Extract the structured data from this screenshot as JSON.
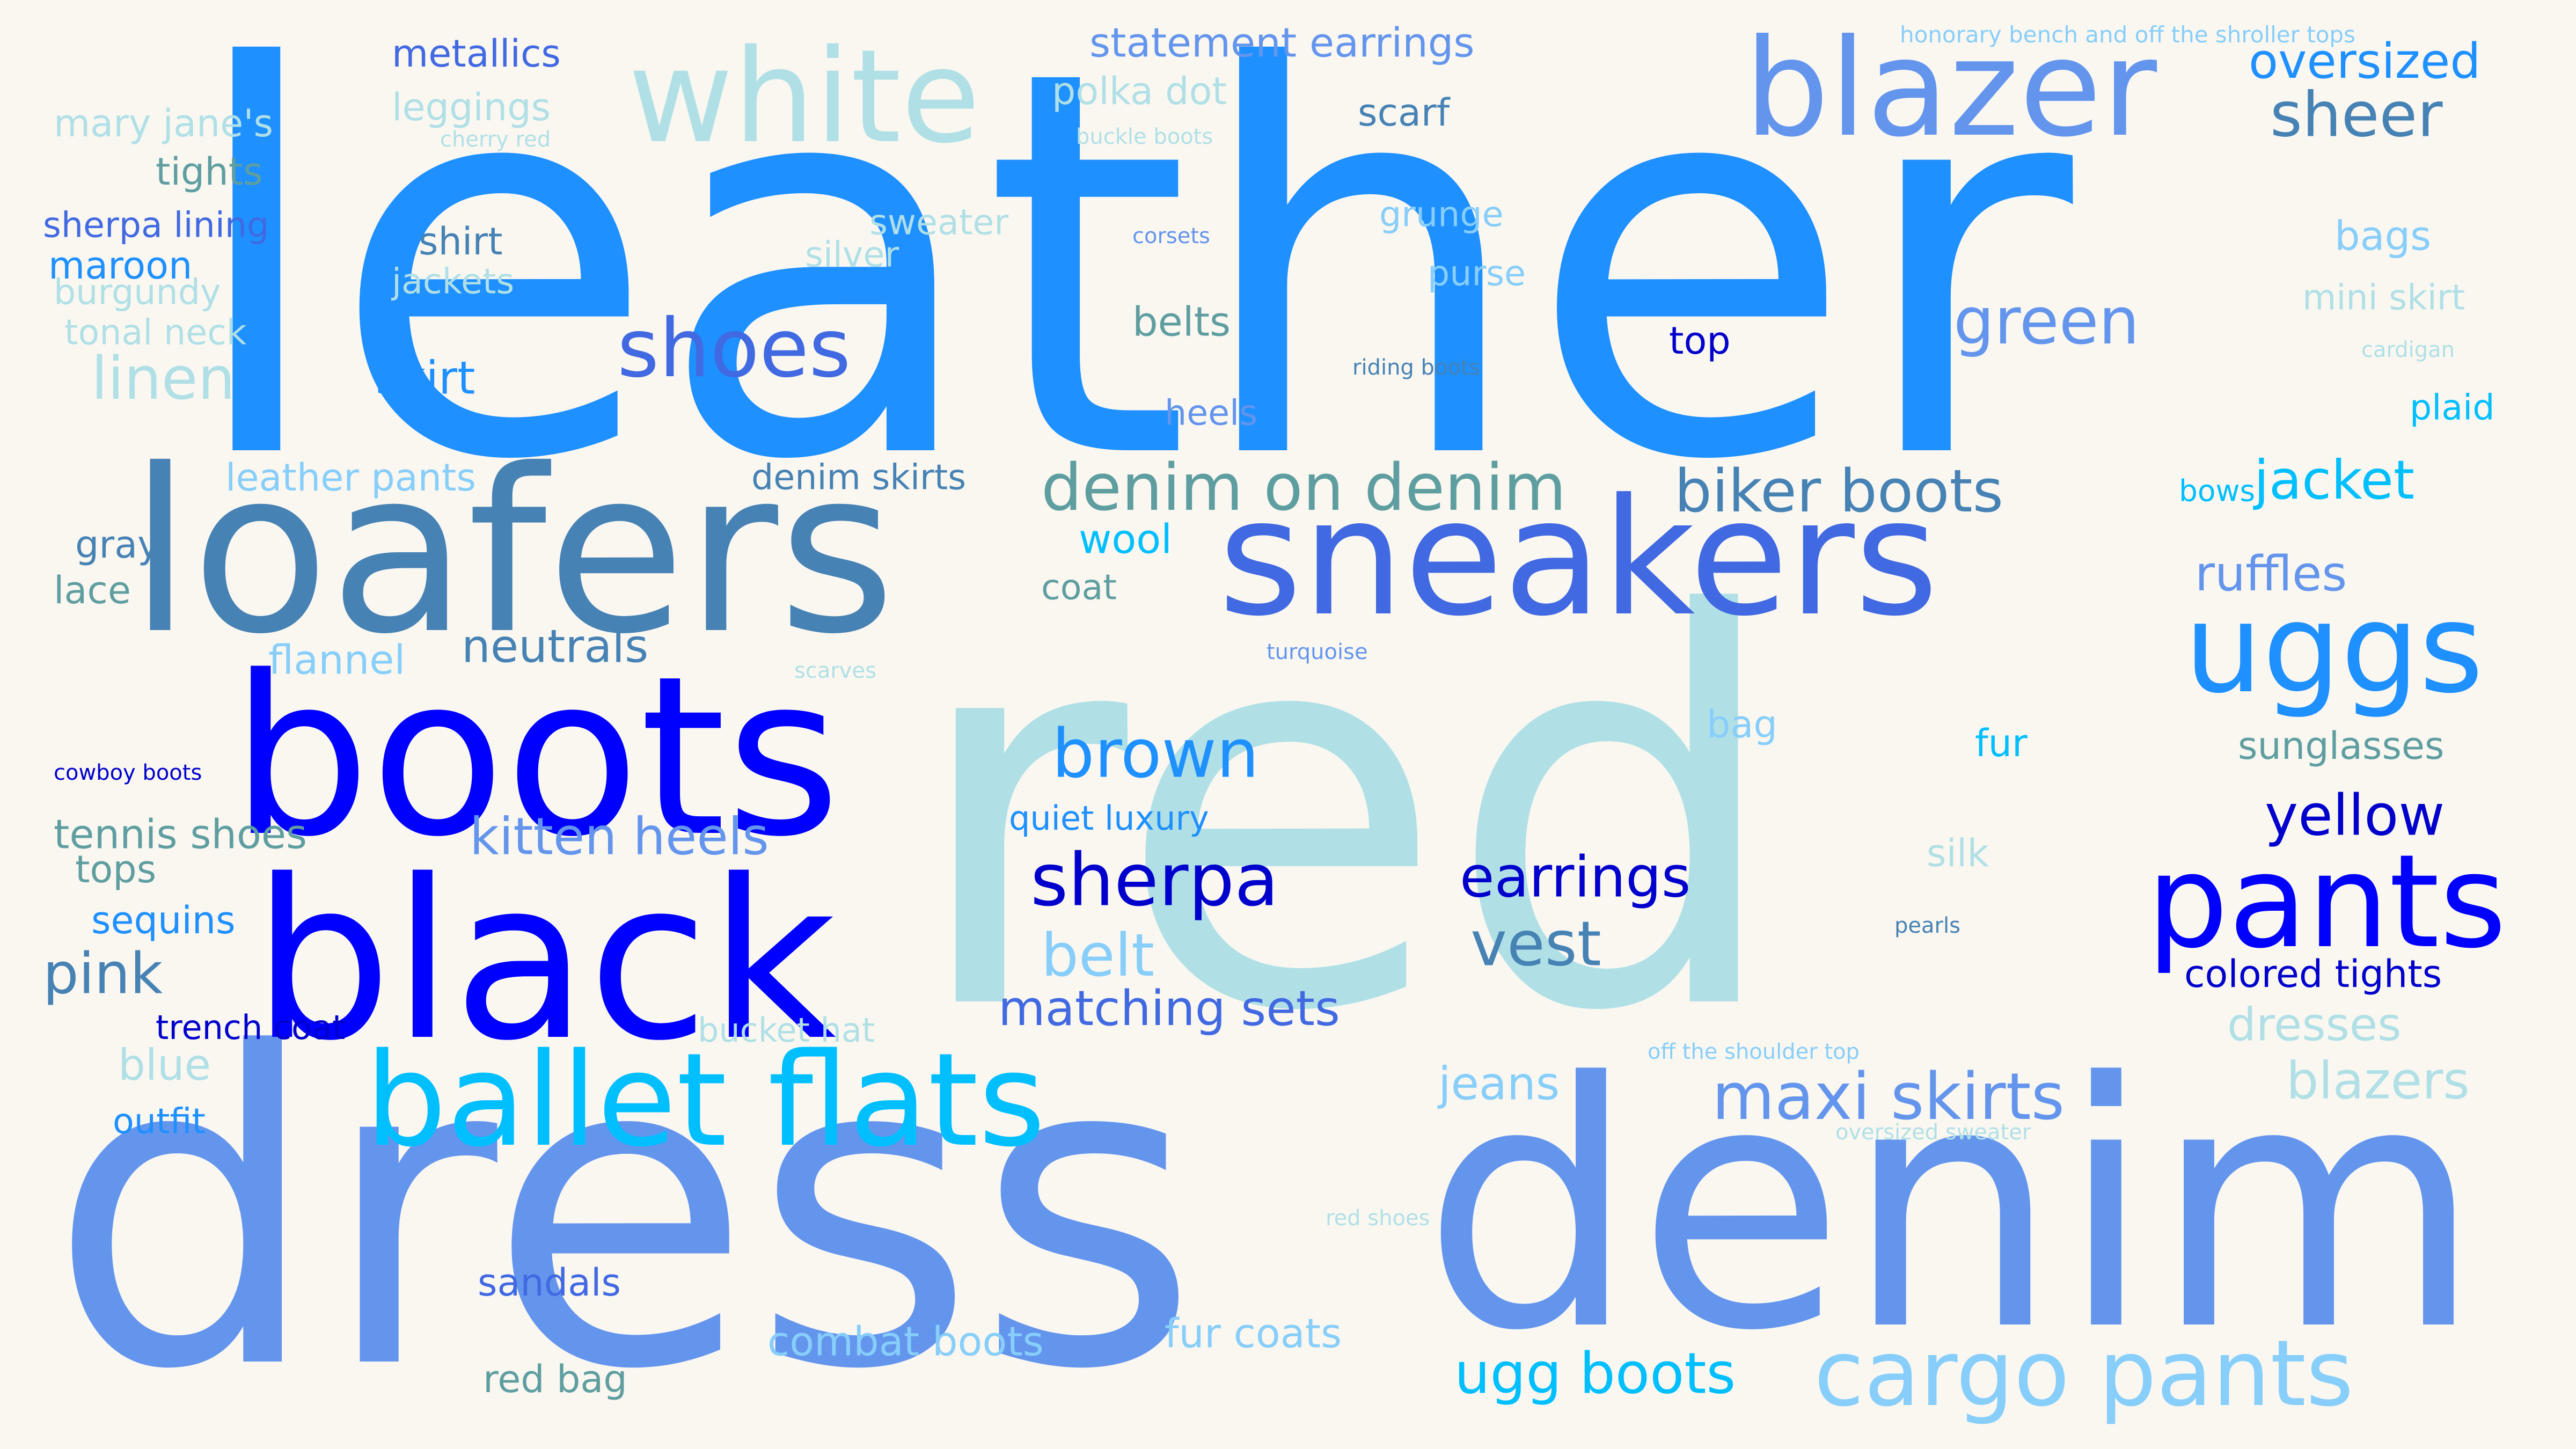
{
  "colors": {
    "background": "#faf7f1",
    "dodgerblue": "#1e90ff",
    "powderblue": "#b0e0e6",
    "cornflowerblue": "#6495ed",
    "steelblue": "#4682b4",
    "royalblue": "#4169e1",
    "blue": "#0000ff",
    "mediumblue": "#0000cd",
    "deepskyblue": "#00bfff",
    "lightskyblue": "#87cefa",
    "cadetblue": "#5f9ea0"
  },
  "words": [
    {
      "text": "leather",
      "color": "#1e90ff"
    },
    {
      "text": "red",
      "color": "#b0e0e6"
    },
    {
      "text": "dress",
      "color": "#6495ed"
    },
    {
      "text": "denim",
      "color": "#6495ed"
    },
    {
      "text": "loafers",
      "color": "#4682b4"
    },
    {
      "text": "boots",
      "color": "#0000ff"
    },
    {
      "text": "black",
      "color": "#0000ff"
    },
    {
      "text": "sneakers",
      "color": "#4169e1"
    },
    {
      "text": "white",
      "color": "#b0e0e6"
    },
    {
      "text": "blazer",
      "color": "#6495ed"
    },
    {
      "text": "ballet flats",
      "color": "#00bfff"
    },
    {
      "text": "uggs",
      "color": "#1e90ff"
    },
    {
      "text": "pants",
      "color": "#0000ff"
    },
    {
      "text": "cargo pants",
      "color": "#87cefa"
    },
    {
      "text": "shoes",
      "color": "#4169e1"
    },
    {
      "text": "sherpa",
      "color": "#0000cd"
    },
    {
      "text": "maxi skirts",
      "color": "#6495ed"
    },
    {
      "text": "denim on denim",
      "color": "#5f9ea0"
    },
    {
      "text": "green",
      "color": "#6495ed"
    },
    {
      "text": "brown",
      "color": "#1e90ff"
    },
    {
      "text": "biker boots",
      "color": "#4682b4"
    },
    {
      "text": "vest",
      "color": "#4682b4"
    },
    {
      "text": "ugg boots",
      "color": "#00bfff"
    },
    {
      "text": "sheer",
      "color": "#4682b4"
    },
    {
      "text": "earrings",
      "color": "#0000cd"
    },
    {
      "text": "yellow",
      "color": "#0000cd"
    },
    {
      "text": "jacket",
      "color": "#00bfff"
    },
    {
      "text": "oversized",
      "color": "#1e90ff"
    },
    {
      "text": "linen",
      "color": "#b0e0e6"
    },
    {
      "text": "belt",
      "color": "#87cefa"
    },
    {
      "text": "blazers",
      "color": "#b0e0e6"
    },
    {
      "text": "kitten heels",
      "color": "#6495ed"
    },
    {
      "text": "matching sets",
      "color": "#4169e1"
    },
    {
      "text": "ruffles",
      "color": "#6495ed"
    },
    {
      "text": "pink",
      "color": "#4682b4"
    },
    {
      "text": "jeans",
      "color": "#87cefa"
    },
    {
      "text": "dresses",
      "color": "#b0e0e6"
    },
    {
      "text": "neutrals",
      "color": "#4682b4"
    },
    {
      "text": "statement earrings",
      "color": "#6495ed"
    },
    {
      "text": "sunglasses",
      "color": "#5f9ea0"
    },
    {
      "text": "skirt",
      "color": "#1e90ff"
    },
    {
      "text": "colored tights",
      "color": "#0000cd"
    },
    {
      "text": "tennis shoes",
      "color": "#5f9ea0"
    },
    {
      "text": "combat boots",
      "color": "#87cefa"
    },
    {
      "text": "fur coats",
      "color": "#87cefa"
    },
    {
      "text": "metallics",
      "color": "#4169e1"
    },
    {
      "text": "leggings",
      "color": "#b0e0e6"
    },
    {
      "text": "polka dot",
      "color": "#b0e0e6"
    },
    {
      "text": "mary jane's",
      "color": "#b0e0e6"
    },
    {
      "text": "bags",
      "color": "#87cefa"
    },
    {
      "text": "belts",
      "color": "#5f9ea0"
    },
    {
      "text": "tights",
      "color": "#5f9ea0"
    },
    {
      "text": "sherpa lining",
      "color": "#4169e1"
    },
    {
      "text": "scarf",
      "color": "#4682b4"
    },
    {
      "text": "flannel",
      "color": "#87cefa"
    },
    {
      "text": "leather pants",
      "color": "#87cefa"
    },
    {
      "text": "denim skirts",
      "color": "#4682b4"
    },
    {
      "text": "shirt",
      "color": "#4682b4"
    },
    {
      "text": "maroon",
      "color": "#1e90ff"
    },
    {
      "text": "sweater",
      "color": "#b0e0e6"
    },
    {
      "text": "grunge",
      "color": "#87cefa"
    },
    {
      "text": "mini skirt",
      "color": "#b0e0e6"
    },
    {
      "text": "wool",
      "color": "#00bfff"
    },
    {
      "text": "sandals",
      "color": "#4169e1"
    },
    {
      "text": "sequins",
      "color": "#1e90ff"
    },
    {
      "text": "silver",
      "color": "#b0e0e6"
    },
    {
      "text": "burgundy",
      "color": "#b0e0e6"
    },
    {
      "text": "jackets",
      "color": "#b0e0e6"
    },
    {
      "text": "tonal neck",
      "color": "#b0e0e6"
    },
    {
      "text": "purse",
      "color": "#87cefa"
    },
    {
      "text": "top",
      "color": "#0000cd"
    },
    {
      "text": "heels",
      "color": "#6495ed"
    },
    {
      "text": "plaid",
      "color": "#00bfff"
    },
    {
      "text": "gray",
      "color": "#4682b4"
    },
    {
      "text": "lace",
      "color": "#5f9ea0"
    },
    {
      "text": "coat",
      "color": "#5f9ea0"
    },
    {
      "text": "bag",
      "color": "#87cefa"
    },
    {
      "text": "fur",
      "color": "#00bfff"
    },
    {
      "text": "quiet luxury",
      "color": "#1e90ff"
    },
    {
      "text": "tops",
      "color": "#5f9ea0"
    },
    {
      "text": "silk",
      "color": "#b0e0e6"
    },
    {
      "text": "trench coat",
      "color": "#0000cd"
    },
    {
      "text": "bucket hat",
      "color": "#b0e0e6"
    },
    {
      "text": "blue",
      "color": "#b0e0e6"
    },
    {
      "text": "outfit",
      "color": "#1e90ff"
    },
    {
      "text": "red bag",
      "color": "#5f9ea0"
    },
    {
      "text": "bows",
      "color": "#00bfff"
    },
    {
      "text": "honorary bench and off the shroller tops",
      "color": "#87cefa"
    },
    {
      "text": "cherry red",
      "color": "#b0e0e6"
    },
    {
      "text": "buckle boots",
      "color": "#b0e0e6"
    },
    {
      "text": "corsets",
      "color": "#6495ed"
    },
    {
      "text": "riding boots",
      "color": "#4682b4"
    },
    {
      "text": "cardigan",
      "color": "#b0e0e6"
    },
    {
      "text": "scarves",
      "color": "#b0e0e6"
    },
    {
      "text": "turquoise",
      "color": "#6495ed"
    },
    {
      "text": "cowboy boots",
      "color": "#0000cd"
    },
    {
      "text": "pearls",
      "color": "#4682b4"
    },
    {
      "text": "off the shoulder top",
      "color": "#87cefa"
    },
    {
      "text": "oversized sweater",
      "color": "#b0e0e6"
    },
    {
      "text": "red shoes",
      "color": "#b0e0e6"
    }
  ]
}
